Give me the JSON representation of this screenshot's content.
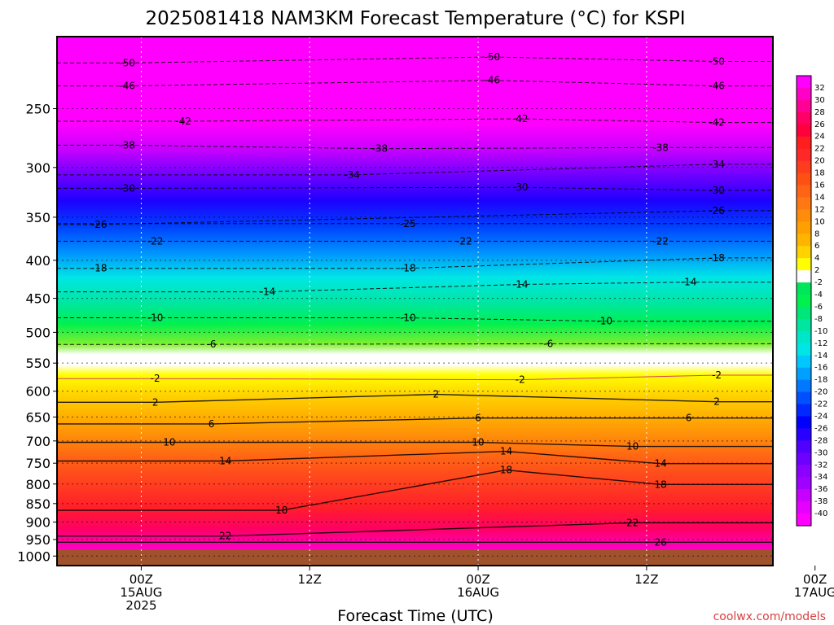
{
  "chart_data": {
    "type": "heatmap",
    "title": "2025081418 NAM3KM Forecast Temperature (°C) for KSPI",
    "xlabel": "Forecast Time (UTC)",
    "ylabel": "",
    "y_ticks": [
      "250",
      "300",
      "350",
      "400",
      "450",
      "500",
      "550",
      "600",
      "650",
      "700",
      "750",
      "800",
      "850",
      "900",
      "950",
      "1000"
    ],
    "y_tick_values": [
      250,
      300,
      350,
      400,
      450,
      500,
      550,
      600,
      650,
      700,
      750,
      800,
      850,
      900,
      950,
      1000
    ],
    "ylim": [
      200,
      1030
    ],
    "y_scale": "log",
    "xlim": [
      -6,
      45
    ],
    "x_tick_hours": [
      0,
      12,
      24,
      36,
      48
    ],
    "x_ticks": [
      [
        "00Z",
        "15AUG",
        "2025"
      ],
      [
        "12Z"
      ],
      [
        "00Z",
        "16AUG"
      ],
      [
        "12Z"
      ],
      [
        "00Z",
        "17AUG"
      ]
    ],
    "colorbar": {
      "labels": [
        "32",
        "30",
        "28",
        "26",
        "24",
        "22",
        "20",
        "18",
        "16",
        "14",
        "12",
        "10",
        "8",
        "6",
        "4",
        "2",
        "-2",
        "-4",
        "-6",
        "-8",
        "-10",
        "-12",
        "-14",
        "-16",
        "-18",
        "-20",
        "-22",
        "-24",
        "-26",
        "-28",
        "-30",
        "-32",
        "-34",
        "-36",
        "-38",
        "-40"
      ],
      "colors": [
        "#ff00ff",
        "#ff00c8",
        "#ff0096",
        "#ff0064",
        "#ff003c",
        "#ff1e1e",
        "#ff2828",
        "#ff3c1e",
        "#ff5014",
        "#ff6414",
        "#ff7814",
        "#ff8c0a",
        "#ffa000",
        "#ffb400",
        "#ffd200",
        "#ffff00",
        "#ffffff",
        "#00e65a",
        "#00f050",
        "#00e678",
        "#00e6a0",
        "#00e6c8",
        "#00e6e6",
        "#00c8ff",
        "#00a0ff",
        "#0078ff",
        "#0050ff",
        "#0028ff",
        "#0000ff",
        "#2800ff",
        "#5000ff",
        "#6e00ff",
        "#8c00ff",
        "#a000ff",
        "#c800ff",
        "#e600ff",
        "#ff00ff"
      ]
    },
    "contour_labels": [
      {
        "value": "-50",
        "hour": -1,
        "p": 217
      },
      {
        "value": "-50",
        "hour": 25,
        "p": 213
      },
      {
        "value": "-50",
        "hour": 41,
        "p": 216
      },
      {
        "value": "-46",
        "hour": -1,
        "p": 233
      },
      {
        "value": "-46",
        "hour": 25,
        "p": 229
      },
      {
        "value": "-46",
        "hour": 41,
        "p": 233
      },
      {
        "value": "-42",
        "hour": 3,
        "p": 260
      },
      {
        "value": "-42",
        "hour": 27,
        "p": 258
      },
      {
        "value": "-42",
        "hour": 41,
        "p": 261
      },
      {
        "value": "-38",
        "hour": -1,
        "p": 280
      },
      {
        "value": "-38",
        "hour": 17,
        "p": 283
      },
      {
        "value": "-38",
        "hour": 37,
        "p": 282
      },
      {
        "value": "-34",
        "hour": 15,
        "p": 307
      },
      {
        "value": "-34",
        "hour": 41,
        "p": 297
      },
      {
        "value": "-30",
        "hour": -1,
        "p": 320
      },
      {
        "value": "-30",
        "hour": 27,
        "p": 319
      },
      {
        "value": "-30",
        "hour": 41,
        "p": 322
      },
      {
        "value": "-26",
        "hour": -3,
        "p": 358
      },
      {
        "value": "-26",
        "hour": 41,
        "p": 343
      },
      {
        "value": "-25",
        "hour": 19,
        "p": 357
      },
      {
        "value": "-22",
        "hour": 1,
        "p": 377
      },
      {
        "value": "-22",
        "hour": 23,
        "p": 377
      },
      {
        "value": "-22",
        "hour": 37,
        "p": 377
      },
      {
        "value": "-18",
        "hour": -3,
        "p": 410
      },
      {
        "value": "-18",
        "hour": 19,
        "p": 410
      },
      {
        "value": "-18",
        "hour": 41,
        "p": 397
      },
      {
        "value": "-14",
        "hour": 9,
        "p": 441
      },
      {
        "value": "-14",
        "hour": 27,
        "p": 431
      },
      {
        "value": "-14",
        "hour": 39,
        "p": 428
      },
      {
        "value": "-10",
        "hour": 1,
        "p": 478
      },
      {
        "value": "-10",
        "hour": 19,
        "p": 478
      },
      {
        "value": "-10",
        "hour": 33,
        "p": 483
      },
      {
        "value": "-6",
        "hour": 5,
        "p": 519
      },
      {
        "value": "-6",
        "hour": 29,
        "p": 518
      },
      {
        "value": "-2",
        "hour": 1,
        "p": 577
      },
      {
        "value": "-2",
        "hour": 27,
        "p": 579
      },
      {
        "value": "-2",
        "hour": 41,
        "p": 571
      },
      {
        "value": "2",
        "hour": 1,
        "p": 621
      },
      {
        "value": "2",
        "hour": 21,
        "p": 606
      },
      {
        "value": "2",
        "hour": 41,
        "p": 620
      },
      {
        "value": "6",
        "hour": 5,
        "p": 664
      },
      {
        "value": "6",
        "hour": 24,
        "p": 652
      },
      {
        "value": "6",
        "hour": 39,
        "p": 652
      },
      {
        "value": "10",
        "hour": 2,
        "p": 703
      },
      {
        "value": "10",
        "hour": 24,
        "p": 703
      },
      {
        "value": "10",
        "hour": 35,
        "p": 712
      },
      {
        "value": "14",
        "hour": 6,
        "p": 745
      },
      {
        "value": "14",
        "hour": 26,
        "p": 723
      },
      {
        "value": "14",
        "hour": 37,
        "p": 751
      },
      {
        "value": "18",
        "hour": 26,
        "p": 766
      },
      {
        "value": "18",
        "hour": 10,
        "p": 868
      },
      {
        "value": "18",
        "hour": 37,
        "p": 801
      },
      {
        "value": "22",
        "hour": 6,
        "p": 940
      },
      {
        "value": "22",
        "hour": 35,
        "p": 902
      },
      {
        "value": "26",
        "hour": 37,
        "p": 958
      }
    ],
    "grid": true,
    "legend": "right"
  },
  "credit": "coolwx.com/models"
}
